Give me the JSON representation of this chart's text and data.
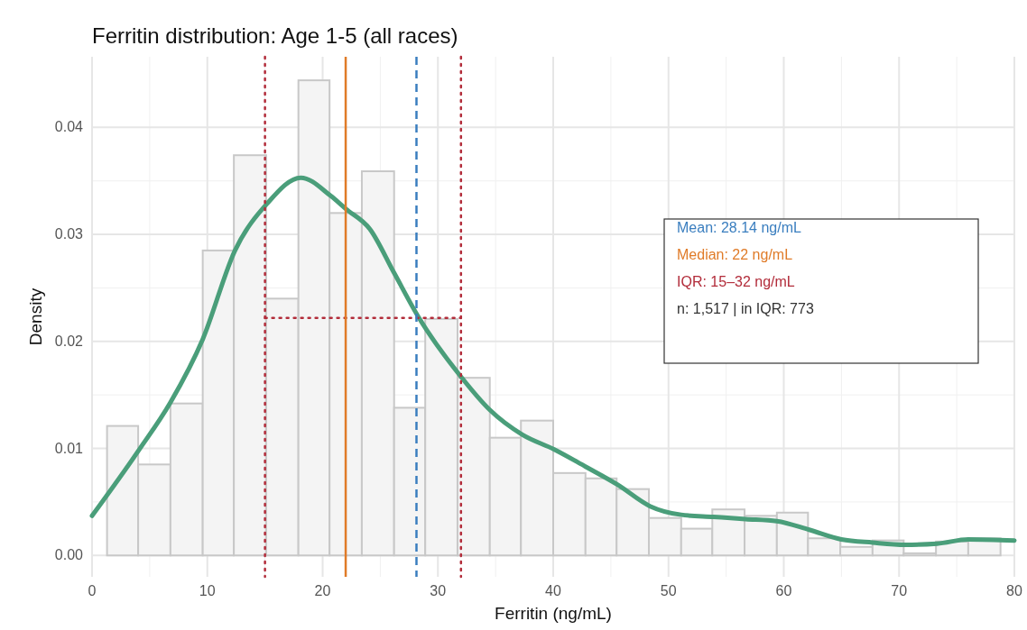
{
  "chart_data": {
    "type": "histogram",
    "title": "Ferritin distribution: Age 1-5 (all races)",
    "xlabel": "Ferritin (ng/mL)",
    "ylabel": "Density",
    "xlim": [
      0,
      80
    ],
    "xticks": [
      0,
      10,
      20,
      30,
      40,
      50,
      60,
      70,
      80
    ],
    "ylim": [
      -0.002,
      0.0466
    ],
    "yticks": [
      {
        "value": 0,
        "label": "0.00"
      },
      0.01,
      0.02,
      0.03,
      0.04
    ],
    "grid": true,
    "legend": "right",
    "series": [
      {
        "type": "histogram",
        "color": "#f4f4f4",
        "bins": [
          1.3,
          4.0,
          6.8,
          9.6,
          12.3,
          15.1,
          17.9,
          20.6,
          23.4,
          26.2,
          28.9,
          31.7,
          34.5,
          37.2,
          40.0,
          42.8,
          45.5,
          48.3,
          51.1,
          53.8,
          56.6,
          59.4,
          62.1,
          64.9,
          67.7,
          70.4,
          73.2,
          76.0,
          78.8
        ],
        "values": [
          0.0121,
          0.0085,
          0.0142,
          0.0285,
          0.0374,
          0.024,
          0.0444,
          0.032,
          0.0359,
          0.0138,
          0.0221,
          0.0166,
          0.011,
          0.0126,
          0.0077,
          0.0072,
          0.0062,
          0.0035,
          0.0025,
          0.0043,
          0.0037,
          0.004,
          0.0016,
          0.0008,
          0.0014,
          0.0002,
          0.0013,
          0.0016
        ]
      },
      {
        "type": "line",
        "color": "#4a9e7a",
        "x": [
          0,
          4.1,
          6.8,
          9.6,
          12.4,
          15.2,
          18.1,
          20.7,
          22,
          24.1,
          26.2,
          28.3,
          32,
          34.5,
          37.3,
          40.1,
          42.8,
          45.6,
          48.4,
          51.1,
          53.9,
          56.7,
          59.4,
          62.2,
          65,
          67.7,
          70.5,
          73.3,
          76,
          80
        ],
        "values": [
          0.0037,
          0.0099,
          0.0143,
          0.0202,
          0.0285,
          0.0329,
          0.0353,
          0.0336,
          0.0324,
          0.0305,
          0.0264,
          0.0223,
          0.0167,
          0.0136,
          0.0113,
          0.0099,
          0.0083,
          0.0066,
          0.0046,
          0.0038,
          0.0036,
          0.0034,
          0.0032,
          0.0024,
          0.0015,
          0.0012,
          0.001,
          0.0011,
          0.0015,
          0.0014
        ]
      },
      {
        "type": "line",
        "color": "#b22c3a",
        "line_style": "dotted",
        "x": [
          15,
          32
        ],
        "values": [
          0.0222,
          0.0222
        ]
      }
    ],
    "ref_lines": [
      {
        "axis": "x",
        "value": 28.14,
        "label": "Mean: 28.14 ng/mL",
        "color": "#3a7ebf",
        "line_style": "dashed"
      },
      {
        "axis": "x",
        "value": 22,
        "label": "Median: 22 ng/mL",
        "color": "#e07b28",
        "line_style": "solid"
      },
      {
        "axis": "x",
        "value": 15,
        "label": "IQR: 15–32 ng/mL",
        "color": "#b22c3a",
        "line_style": "dotted"
      },
      {
        "axis": "x",
        "value": 32,
        "label": null,
        "color": "#b22c3a",
        "line_style": "dotted"
      }
    ],
    "annotations": [
      "n: 1,517 | in IQR: 773"
    ]
  }
}
